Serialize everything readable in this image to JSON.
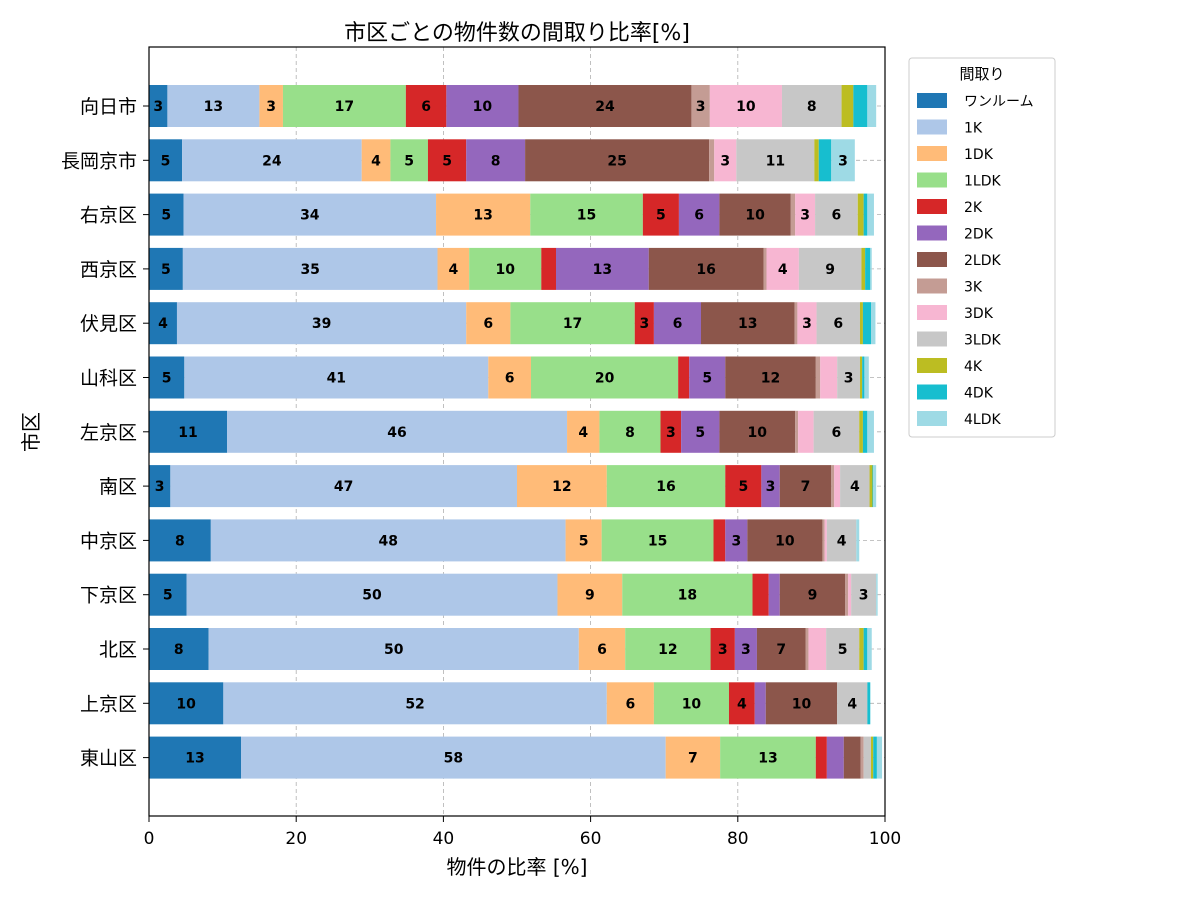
{
  "chart_data": {
    "type": "bar",
    "orientation": "horizontal",
    "stacked": true,
    "title": "市区ごとの物件数の間取り比率[%]",
    "xlabel": "物件の比率 [%]",
    "ylabel": "市区",
    "xlim": [
      0,
      100
    ],
    "xticks": [
      0,
      20,
      40,
      60,
      80,
      100
    ],
    "grid": true,
    "legend_title": "間取り",
    "legend_position": "outside-right",
    "categories": [
      "向日市",
      "長岡京市",
      "右京区",
      "西京区",
      "伏見区",
      "山科区",
      "左京区",
      "南区",
      "中京区",
      "下京区",
      "北区",
      "上京区",
      "東山区"
    ],
    "series": [
      {
        "name": "ワンルーム",
        "color": "#1f77b4",
        "values": [
          2.5,
          4.5,
          4.7,
          4.6,
          3.8,
          4.8,
          10.6,
          2.9,
          8.4,
          5.1,
          8.1,
          10.1,
          12.5
        ]
      },
      {
        "name": "1K",
        "color": "#aec7e8",
        "values": [
          12.5,
          24.4,
          34.3,
          34.6,
          39.3,
          41.3,
          46.2,
          47.1,
          48.2,
          50.4,
          50.3,
          52.1,
          57.7
        ]
      },
      {
        "name": "1DK",
        "color": "#ffbb78",
        "values": [
          3.2,
          3.9,
          12.8,
          4.3,
          6.0,
          5.8,
          4.4,
          12.2,
          4.9,
          8.8,
          6.3,
          6.4,
          7.4
        ]
      },
      {
        "name": "1LDK",
        "color": "#98df8a",
        "values": [
          16.7,
          5.1,
          15.3,
          9.8,
          16.9,
          20.0,
          8.3,
          16.1,
          15.2,
          17.7,
          11.6,
          10.2,
          13.0
        ]
      },
      {
        "name": "2K",
        "color": "#d62728",
        "values": [
          5.5,
          5.2,
          4.9,
          2.0,
          2.6,
          1.5,
          2.8,
          4.9,
          1.6,
          2.2,
          3.3,
          3.5,
          1.5
        ]
      },
      {
        "name": "2DK",
        "color": "#9467bd",
        "values": [
          9.8,
          8.0,
          5.5,
          12.6,
          6.4,
          4.9,
          5.2,
          2.5,
          3.0,
          1.5,
          3.0,
          1.5,
          2.3
        ]
      },
      {
        "name": "2LDK",
        "color": "#8c564b",
        "values": [
          23.5,
          25.0,
          9.7,
          15.6,
          12.7,
          12.3,
          10.3,
          7.0,
          10.2,
          8.9,
          6.6,
          9.7,
          2.3
        ]
      },
      {
        "name": "3K",
        "color": "#c49c94",
        "values": [
          2.5,
          0.7,
          0.6,
          0.4,
          0.4,
          0.6,
          0.4,
          0.4,
          0.3,
          0.4,
          0.4,
          0.0,
          0.4
        ]
      },
      {
        "name": "3DK",
        "color": "#f7b6d2",
        "values": [
          9.8,
          3.0,
          2.7,
          4.4,
          2.6,
          2.3,
          2.1,
          0.8,
          0.3,
          0.4,
          2.4,
          0.0,
          0.0
        ]
      },
      {
        "name": "3LDK",
        "color": "#c7c7c7",
        "values": [
          8.1,
          10.6,
          5.8,
          8.5,
          5.9,
          3.1,
          6.2,
          4.0,
          4.0,
          3.4,
          4.5,
          4.1,
          1.0
        ]
      },
      {
        "name": "4K",
        "color": "#bcbd22",
        "values": [
          1.6,
          0.6,
          0.8,
          0.5,
          0.4,
          0.3,
          0.5,
          0.4,
          0.0,
          0.0,
          0.6,
          0.0,
          0.3
        ]
      },
      {
        "name": "4DK",
        "color": "#17becf",
        "values": [
          1.9,
          1.7,
          0.5,
          0.7,
          1.1,
          0.3,
          0.6,
          0.1,
          0.0,
          0.0,
          0.5,
          0.4,
          0.5
        ]
      },
      {
        "name": "4LDK",
        "color": "#9edae5",
        "values": [
          1.2,
          3.2,
          0.9,
          0.2,
          0.6,
          0.6,
          0.9,
          0.4,
          0.4,
          0.2,
          0.6,
          0.0,
          0.7
        ]
      }
    ]
  }
}
